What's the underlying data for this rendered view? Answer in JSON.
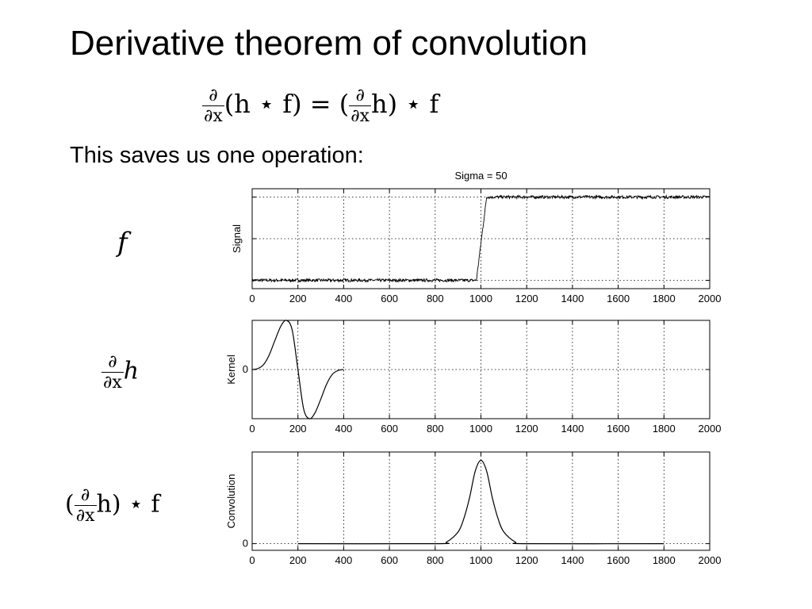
{
  "slide": {
    "title": "Derivative theorem of convolution",
    "body_text": "This saves us one operation:"
  },
  "equations": {
    "main": {
      "partial": "∂",
      "dx": "∂x",
      "lhs_rest": "(h ⋆ f) = (",
      "rhs_rest": "h) ⋆ f"
    },
    "row_f": "f",
    "row_kernel": {
      "partial": "∂",
      "dx": "∂x",
      "rest": "h"
    },
    "row_conv": {
      "open": "(",
      "partial": "∂",
      "dx": "∂x",
      "rest": "h) ⋆ f"
    }
  },
  "chart_data": [
    {
      "type": "line",
      "title": "Sigma = 50",
      "ylabel": "Signal",
      "xlim": [
        0,
        2000
      ],
      "x_ticks": [
        "0",
        "200",
        "400",
        "600",
        "800",
        "1000",
        "1200",
        "1400",
        "1600",
        "1800",
        "2000"
      ],
      "ylim": [
        -0.1,
        1.1
      ],
      "grid": true,
      "series": [
        {
          "x": [
            0,
            980,
            1025,
            2000
          ],
          "y": [
            0.0,
            0.0,
            1.0,
            1.0
          ],
          "noise": 0.015
        }
      ]
    },
    {
      "type": "line",
      "title": "",
      "ylabel": "Kernel",
      "xlim": [
        0,
        2000
      ],
      "x_ticks": [
        "0",
        "200",
        "400",
        "600",
        "800",
        "1000",
        "1200",
        "1400",
        "1600",
        "1800",
        "2000"
      ],
      "y_ticks": [
        "0"
      ],
      "ylim": [
        -1.0,
        1.0
      ],
      "grid": true,
      "series": [
        {
          "x": [
            0,
            25,
            50,
            75,
            100,
            125,
            150,
            175,
            200,
            225,
            250,
            275,
            300,
            325,
            350,
            375,
            400
          ],
          "y": [
            0.0,
            0.02,
            0.1,
            0.3,
            0.6,
            0.88,
            1.0,
            0.8,
            0.0,
            -0.8,
            -1.0,
            -0.88,
            -0.6,
            -0.3,
            -0.1,
            -0.02,
            0.0
          ]
        }
      ]
    },
    {
      "type": "line",
      "title": "",
      "ylabel": "Convolution",
      "xlim": [
        0,
        2000
      ],
      "x_ticks": [
        "0",
        "200",
        "400",
        "600",
        "800",
        "1000",
        "1200",
        "1400",
        "1600",
        "1800",
        "2000"
      ],
      "y_ticks": [
        "0"
      ],
      "ylim": [
        -0.08,
        1.1
      ],
      "grid": true,
      "series": [
        {
          "x": [
            200,
            800,
            850,
            900,
            925,
            950,
            975,
            1000,
            1025,
            1050,
            1075,
            1100,
            1150,
            1200,
            1800
          ],
          "y": [
            0.0,
            0.0,
            0.02,
            0.14,
            0.3,
            0.55,
            0.87,
            1.0,
            0.87,
            0.55,
            0.3,
            0.14,
            0.02,
            0.0,
            0.0
          ]
        }
      ]
    }
  ]
}
